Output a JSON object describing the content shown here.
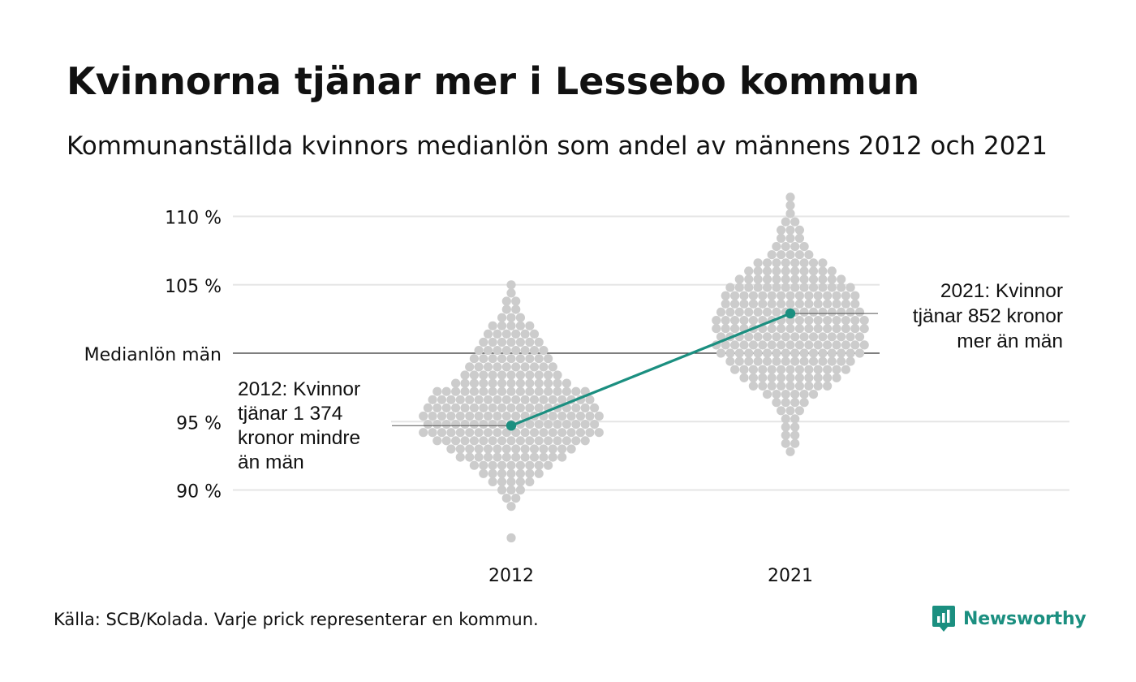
{
  "header": {
    "title": "Kvinnorna tjänar mer i Lessebo kommun",
    "subtitle": "Kommunanställda kvinnors medianlön som andel av männens 2012 och 2021"
  },
  "footer": {
    "source": "Källa: SCB/Kolada. Varje prick representerar en kommun.",
    "brand": "Newsworthy",
    "brand_icon": "newsworthy-logo-icon"
  },
  "colors": {
    "highlight": "#1b8f80",
    "dots": "#cccccc",
    "grid": "#e5e5e5",
    "reference": "#333333"
  },
  "chart_data": {
    "type": "scatter",
    "subtype": "beeswarm",
    "categories": [
      "2012",
      "2021"
    ],
    "y_ticks": [
      {
        "value": 110,
        "label": "110 %"
      },
      {
        "value": 105,
        "label": "105 %"
      },
      {
        "value": 100,
        "label": "Medianlön män"
      },
      {
        "value": 95,
        "label": "95 %"
      },
      {
        "value": 90,
        "label": "90 %"
      }
    ],
    "ylim": [
      86,
      112
    ],
    "reference_line": {
      "value": 100,
      "label": "Medianlön män"
    },
    "grid": true,
    "swarms": [
      {
        "category": "2012",
        "distribution": [
          {
            "value": 105.0,
            "count": 1
          },
          {
            "value": 104.4,
            "count": 1
          },
          {
            "value": 103.8,
            "count": 2
          },
          {
            "value": 103.2,
            "count": 2
          },
          {
            "value": 102.6,
            "count": 3
          },
          {
            "value": 102.0,
            "count": 5
          },
          {
            "value": 101.4,
            "count": 6
          },
          {
            "value": 100.8,
            "count": 7
          },
          {
            "value": 100.2,
            "count": 8
          },
          {
            "value": 99.6,
            "count": 9
          },
          {
            "value": 99.0,
            "count": 10
          },
          {
            "value": 98.4,
            "count": 11
          },
          {
            "value": 97.8,
            "count": 13
          },
          {
            "value": 97.2,
            "count": 17
          },
          {
            "value": 96.6,
            "count": 18
          },
          {
            "value": 96.0,
            "count": 19
          },
          {
            "value": 95.4,
            "count": 20
          },
          {
            "value": 94.8,
            "count": 19
          },
          {
            "value": 94.2,
            "count": 20
          },
          {
            "value": 93.6,
            "count": 17
          },
          {
            "value": 93.0,
            "count": 14
          },
          {
            "value": 92.4,
            "count": 12
          },
          {
            "value": 91.8,
            "count": 9
          },
          {
            "value": 91.2,
            "count": 7
          },
          {
            "value": 90.6,
            "count": 5
          },
          {
            "value": 90.0,
            "count": 3
          },
          {
            "value": 89.4,
            "count": 2
          },
          {
            "value": 88.8,
            "count": 1
          },
          {
            "value": 86.5,
            "count": 1
          }
        ]
      },
      {
        "category": "2021",
        "distribution": [
          {
            "value": 111.4,
            "count": 1
          },
          {
            "value": 110.8,
            "count": 1
          },
          {
            "value": 110.2,
            "count": 1
          },
          {
            "value": 109.6,
            "count": 2
          },
          {
            "value": 109.0,
            "count": 3
          },
          {
            "value": 108.4,
            "count": 3
          },
          {
            "value": 107.8,
            "count": 4
          },
          {
            "value": 107.2,
            "count": 5
          },
          {
            "value": 106.6,
            "count": 8
          },
          {
            "value": 106.0,
            "count": 10
          },
          {
            "value": 105.4,
            "count": 12
          },
          {
            "value": 104.8,
            "count": 14
          },
          {
            "value": 104.2,
            "count": 15
          },
          {
            "value": 103.6,
            "count": 15
          },
          {
            "value": 103.0,
            "count": 16
          },
          {
            "value": 102.4,
            "count": 17
          },
          {
            "value": 101.8,
            "count": 17
          },
          {
            "value": 101.2,
            "count": 16
          },
          {
            "value": 100.6,
            "count": 17
          },
          {
            "value": 100.0,
            "count": 16
          },
          {
            "value": 99.4,
            "count": 14
          },
          {
            "value": 98.8,
            "count": 13
          },
          {
            "value": 98.2,
            "count": 11
          },
          {
            "value": 97.6,
            "count": 9
          },
          {
            "value": 97.0,
            "count": 6
          },
          {
            "value": 96.4,
            "count": 4
          },
          {
            "value": 95.8,
            "count": 3
          },
          {
            "value": 95.2,
            "count": 2
          },
          {
            "value": 94.6,
            "count": 2
          },
          {
            "value": 94.0,
            "count": 2
          },
          {
            "value": 93.4,
            "count": 2
          },
          {
            "value": 92.8,
            "count": 1
          }
        ]
      }
    ],
    "highlight": {
      "name": "Lessebo kommun",
      "points": [
        {
          "x": "2012",
          "y": 94.7
        },
        {
          "x": "2021",
          "y": 102.9
        }
      ]
    },
    "annotations": [
      {
        "x": "2012",
        "y": 94.7,
        "side": "left",
        "lines": [
          "2012: Kvinnor",
          "tjänar 1 374",
          "kronor mindre",
          "än män"
        ]
      },
      {
        "x": "2021",
        "y": 102.9,
        "side": "right",
        "lines": [
          "2021: Kvinnor",
          "tjänar 852 kronor",
          "mer än män"
        ]
      }
    ]
  }
}
